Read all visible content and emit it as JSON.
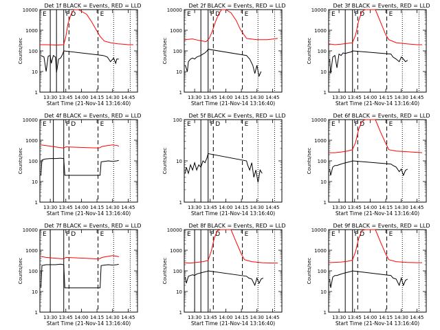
{
  "figure": {
    "ylabel": "Counts/sec",
    "xlabel": "Start Time (21-Nov-14 13:16:40)",
    "x_ticks": [
      "13:30",
      "13:45",
      "14:00",
      "14:15",
      "14:30",
      "14:45"
    ],
    "y_ticks": [
      "1",
      "10",
      "100",
      "1000",
      "10000"
    ],
    "marker_letters": [
      "E",
      "F",
      "D",
      "E"
    ],
    "colors": {
      "events": "#000000",
      "lld": "#ff0000",
      "axes": "#000000"
    }
  },
  "chart_data": [
    {
      "type": "line",
      "title": "Det 1f BLACK = Events, RED = LLD",
      "xlabel": "Start Time (21-Nov-14 13:16:40)",
      "ylabel": "Counts/sec",
      "y_scale": "log",
      "ylim": [
        1,
        10000
      ],
      "xlim": [
        "13:20",
        "14:54"
      ],
      "solid_lines": [
        "13:30",
        "13:36",
        "13:43"
      ],
      "dashed_lines": [
        "13:48",
        "14:16"
      ],
      "dotted_lines": [
        "14:31",
        "14:47"
      ],
      "series": [
        {
          "name": "LLD",
          "color": "#ff0000",
          "x": [
            "13:20",
            "13:26",
            "13:32",
            "13:36",
            "13:40",
            "13:43",
            "13:45",
            "13:47",
            "13:50",
            "13:53",
            "13:57",
            "14:05",
            "14:10",
            "14:15",
            "14:18",
            "14:22",
            "14:28",
            "14:35",
            "14:40",
            "14:45",
            "14:50"
          ],
          "y": [
            200,
            200,
            195,
            190,
            195,
            200,
            500,
            2000,
            6000,
            10000,
            10000,
            6000,
            2500,
            900,
            500,
            300,
            250,
            220,
            210,
            200,
            200
          ]
        },
        {
          "name": "Events",
          "color": "#000000",
          "x": [
            "13:21",
            "13:24",
            "13:26",
            "13:28",
            "13:30",
            "13:31",
            "13:33",
            "13:35",
            "13:36",
            "13:38",
            "13:40",
            "13:42",
            "13:43",
            "14:21",
            "14:23",
            "14:25",
            "14:28",
            "14:31",
            "14:33",
            "14:34",
            "14:36"
          ],
          "y": [
            60,
            50,
            10,
            55,
            60,
            25,
            60,
            50,
            9,
            40,
            45,
            70,
            100,
            60,
            55,
            50,
            30,
            45,
            25,
            40,
            40
          ]
        }
      ]
    },
    {
      "type": "line",
      "title": "Det 2f BLACK = Events, RED = LLD",
      "xlabel": "Start Time (21-Nov-14 13:16:40)",
      "ylabel": "Counts/sec",
      "y_scale": "log",
      "ylim": [
        1,
        10000
      ],
      "xlim": [
        "13:20",
        "14:54"
      ],
      "solid_lines": [
        "13:36",
        "13:43"
      ],
      "dashed_lines": [
        "13:48",
        "14:16"
      ],
      "dotted_lines": [
        "14:31",
        "14:47"
      ],
      "series": [
        {
          "name": "LLD",
          "color": "#ff0000",
          "x": [
            "13:20",
            "13:28",
            "13:34",
            "13:38",
            "13:41",
            "13:44",
            "13:47",
            "13:50",
            "13:53",
            "13:56",
            "14:00",
            "14:05",
            "14:10",
            "14:14",
            "14:20",
            "14:30",
            "14:40",
            "14:50"
          ],
          "y": [
            350,
            380,
            320,
            300,
            280,
            400,
            900,
            2500,
            6000,
            10000,
            10000,
            7000,
            3000,
            1100,
            400,
            350,
            350,
            400
          ]
        },
        {
          "name": "Events",
          "color": "#000000",
          "x": [
            "13:21",
            "13:23",
            "13:24",
            "13:26",
            "13:28",
            "13:30",
            "13:32",
            "13:34",
            "13:36",
            "13:38",
            "13:40",
            "13:42",
            "13:43",
            "14:20",
            "14:23",
            "14:26",
            "14:28",
            "14:30",
            "14:32",
            "14:34"
          ],
          "y": [
            20,
            10,
            30,
            40,
            45,
            40,
            50,
            55,
            60,
            70,
            80,
            100,
            120,
            60,
            40,
            20,
            8,
            20,
            6,
            10
          ]
        }
      ]
    },
    {
      "type": "line",
      "title": "Det 3f BLACK = Events, RED = LLD",
      "xlabel": "Start Time (21-Nov-14 13:16:40)",
      "ylabel": "Counts/sec",
      "y_scale": "log",
      "ylim": [
        1,
        10000
      ],
      "xlim": [
        "13:20",
        "14:54"
      ],
      "solid_lines": [
        "13:36",
        "13:43"
      ],
      "dashed_lines": [
        "13:48",
        "14:16"
      ],
      "dotted_lines": [
        "14:31",
        "14:47"
      ],
      "series": [
        {
          "name": "LLD",
          "color": "#ff0000",
          "x": [
            "13:20",
            "13:26",
            "13:32",
            "13:38",
            "13:43",
            "13:46",
            "13:49",
            "13:52",
            "13:55",
            "14:05",
            "14:10",
            "14:15",
            "14:18",
            "14:25",
            "14:35",
            "14:45",
            "14:50"
          ],
          "y": [
            220,
            200,
            210,
            230,
            250,
            600,
            3000,
            8000,
            10000,
            10000,
            2500,
            600,
            350,
            250,
            220,
            200,
            200
          ]
        },
        {
          "name": "Events",
          "color": "#000000",
          "x": [
            "13:21",
            "13:22",
            "13:24",
            "13:26",
            "13:28",
            "13:30",
            "13:32",
            "13:34",
            "13:36",
            "13:38",
            "13:40",
            "13:42",
            "13:43",
            "14:20",
            "14:22",
            "14:25",
            "14:28",
            "14:30",
            "14:32",
            "14:34",
            "14:36"
          ],
          "y": [
            40,
            8,
            50,
            60,
            15,
            70,
            60,
            80,
            75,
            80,
            85,
            90,
            100,
            70,
            50,
            40,
            30,
            50,
            40,
            30,
            35
          ]
        }
      ]
    },
    {
      "type": "line",
      "title": "Det 4f BLACK = Events, RED = LLD",
      "xlabel": "Start Time (21-Nov-14 13:16:40)",
      "ylabel": "Counts/sec",
      "y_scale": "log",
      "ylim": [
        1,
        10000
      ],
      "xlim": [
        "13:20",
        "14:54"
      ],
      "solid_lines": [
        "13:33",
        "13:43"
      ],
      "dashed_lines": [
        "13:48",
        "14:16"
      ],
      "dotted_lines": [
        "14:31",
        "14:47"
      ],
      "series": [
        {
          "name": "LLD",
          "color": "#ff0000",
          "x": [
            "13:21",
            "13:26",
            "13:32",
            "13:38",
            "13:43",
            "13:45",
            "14:17",
            "14:20",
            "14:25",
            "14:30",
            "14:35",
            "14:36"
          ],
          "y": [
            600,
            550,
            500,
            450,
            420,
            480,
            420,
            500,
            550,
            600,
            550,
            500
          ]
        },
        {
          "name": "Events",
          "color": "#000000",
          "x": [
            "13:21",
            "13:22",
            "13:24",
            "13:26",
            "13:30",
            "13:35",
            "13:40",
            "13:43",
            "13:44",
            "14:18",
            "14:19",
            "14:22",
            "14:26",
            "14:30",
            "14:34",
            "14:36"
          ],
          "y": [
            20,
            110,
            120,
            125,
            130,
            130,
            135,
            130,
            20,
            20,
            90,
            95,
            100,
            95,
            100,
            105
          ]
        }
      ]
    },
    {
      "type": "line",
      "title": "Det 5f BLACK = Events, RED = LLD",
      "xlabel": "Start Time (21-Nov-14 13:16:40)",
      "ylabel": "Counts/sec",
      "y_scale": "log",
      "ylim": [
        1,
        100
      ],
      "xlim": [
        "13:20",
        "14:54"
      ],
      "solid_lines": [
        "13:36",
        "13:43"
      ],
      "dashed_lines": [
        "13:48",
        "14:16"
      ],
      "dotted_lines": [
        "14:31",
        "14:47"
      ],
      "series": [
        {
          "name": "Events",
          "color": "#000000",
          "x": [
            "13:21",
            "13:22",
            "13:24",
            "13:26",
            "13:28",
            "13:30",
            "13:32",
            "13:34",
            "13:36",
            "13:38",
            "13:40",
            "13:42",
            "13:43",
            "14:20",
            "14:21",
            "14:23",
            "14:25",
            "14:27",
            "14:29",
            "14:31",
            "14:33",
            "14:35"
          ],
          "y": [
            5,
            7,
            5,
            8,
            6,
            9,
            6,
            8,
            7,
            10,
            9,
            12,
            15,
            10,
            8,
            6,
            9,
            4,
            6,
            3,
            6,
            5
          ]
        }
      ]
    },
    {
      "type": "line",
      "title": "Det 6f BLACK = Events, RED = LLD",
      "xlabel": "Start Time (21-Nov-14 13:16:40)",
      "ylabel": "Counts/sec",
      "y_scale": "log",
      "ylim": [
        1,
        10000
      ],
      "xlim": [
        "13:20",
        "14:54"
      ],
      "solid_lines": [
        "13:36",
        "13:43"
      ],
      "dashed_lines": [
        "13:48",
        "14:16"
      ],
      "dotted_lines": [
        "14:31",
        "14:47"
      ],
      "series": [
        {
          "name": "LLD",
          "color": "#ff0000",
          "x": [
            "13:20",
            "13:26",
            "13:32",
            "13:38",
            "13:43",
            "13:46",
            "13:49",
            "13:52",
            "13:55",
            "14:05",
            "14:10",
            "14:15",
            "14:18",
            "14:25",
            "14:35",
            "14:45",
            "14:50"
          ],
          "y": [
            250,
            250,
            270,
            300,
            350,
            800,
            3500,
            8000,
            10000,
            10000,
            2500,
            700,
            350,
            300,
            280,
            260,
            250
          ]
        },
        {
          "name": "Events",
          "color": "#000000",
          "x": [
            "13:21",
            "13:22",
            "13:24",
            "13:26",
            "13:28",
            "13:30",
            "13:32",
            "13:34",
            "13:36",
            "13:38",
            "13:40",
            "13:42",
            "13:43",
            "14:20",
            "14:22",
            "14:25",
            "14:28",
            "14:30",
            "14:32",
            "14:34",
            "14:36"
          ],
          "y": [
            40,
            20,
            50,
            60,
            60,
            65,
            70,
            75,
            80,
            85,
            90,
            95,
            100,
            70,
            60,
            50,
            30,
            40,
            20,
            35,
            40
          ]
        }
      ]
    },
    {
      "type": "line",
      "title": "Det 7f BLACK = Events, RED = LLD",
      "xlabel": "Start Time (21-Nov-14 13:16:40)",
      "ylabel": "Counts/sec",
      "y_scale": "log",
      "ylim": [
        1,
        10000
      ],
      "xlim": [
        "13:20",
        "14:54"
      ],
      "solid_lines": [
        "13:30",
        "13:43"
      ],
      "dashed_lines": [
        "13:48",
        "14:16"
      ],
      "dotted_lines": [
        "14:31",
        "14:47"
      ],
      "series": [
        {
          "name": "LLD",
          "color": "#ff0000",
          "x": [
            "13:21",
            "13:26",
            "13:32",
            "13:38",
            "13:43",
            "13:45",
            "14:17",
            "14:20",
            "14:25",
            "14:30",
            "14:35",
            "14:36"
          ],
          "y": [
            500,
            450,
            420,
            400,
            380,
            450,
            380,
            450,
            500,
            550,
            500,
            480
          ]
        },
        {
          "name": "Events",
          "color": "#000000",
          "x": [
            "13:21",
            "13:22",
            "13:24",
            "13:26",
            "13:30",
            "13:35",
            "13:40",
            "13:43",
            "13:44",
            "14:18",
            "14:19",
            "14:22",
            "14:26",
            "14:30",
            "14:34",
            "14:36"
          ],
          "y": [
            15,
            180,
            190,
            200,
            200,
            200,
            210,
            200,
            15,
            15,
            180,
            190,
            200,
            190,
            200,
            210
          ]
        }
      ]
    },
    {
      "type": "line",
      "title": "Det 8f BLACK = Events, RED = LLD",
      "xlabel": "Start Time (21-Nov-14 13:16:40)",
      "ylabel": "Counts/sec",
      "y_scale": "log",
      "ylim": [
        1,
        10000
      ],
      "xlim": [
        "13:20",
        "14:54"
      ],
      "solid_lines": [
        "13:30",
        "13:36",
        "13:43"
      ],
      "dashed_lines": [
        "13:48",
        "14:16"
      ],
      "dotted_lines": [
        "14:31",
        "14:47"
      ],
      "series": [
        {
          "name": "LLD",
          "color": "#ff0000",
          "x": [
            "13:20",
            "13:26",
            "13:32",
            "13:38",
            "13:43",
            "13:46",
            "13:49",
            "13:52",
            "13:55",
            "14:05",
            "14:10",
            "14:15",
            "14:18",
            "14:25",
            "14:35",
            "14:45",
            "14:50"
          ],
          "y": [
            250,
            240,
            260,
            280,
            320,
            900,
            4000,
            9000,
            10000,
            10000,
            2500,
            650,
            350,
            280,
            250,
            240,
            240
          ]
        },
        {
          "name": "Events",
          "color": "#000000",
          "x": [
            "13:21",
            "13:22",
            "13:24",
            "13:26",
            "13:28",
            "13:30",
            "13:32",
            "13:34",
            "13:36",
            "13:38",
            "13:40",
            "13:42",
            "13:43",
            "14:20",
            "14:22",
            "14:25",
            "14:28",
            "14:30",
            "14:32",
            "14:34",
            "14:36"
          ],
          "y": [
            50,
            25,
            55,
            60,
            65,
            60,
            70,
            75,
            80,
            85,
            90,
            95,
            100,
            55,
            45,
            40,
            20,
            45,
            25,
            40,
            45
          ]
        }
      ]
    },
    {
      "type": "line",
      "title": "Det 9f BLACK = Events, RED = LLD",
      "xlabel": "Start Time (21-Nov-14 13:16:40)",
      "ylabel": "Counts/sec",
      "y_scale": "log",
      "ylim": [
        1,
        10000
      ],
      "xlim": [
        "13:20",
        "14:54"
      ],
      "solid_lines": [
        "13:36",
        "13:43"
      ],
      "dashed_lines": [
        "13:48",
        "14:16"
      ],
      "dotted_lines": [
        "14:31",
        "14:47"
      ],
      "series": [
        {
          "name": "LLD",
          "color": "#ff0000",
          "x": [
            "13:20",
            "13:26",
            "13:32",
            "13:38",
            "13:43",
            "13:46",
            "13:49",
            "13:52",
            "13:55",
            "14:05",
            "14:10",
            "14:15",
            "14:18",
            "14:25",
            "14:35",
            "14:45",
            "14:50"
          ],
          "y": [
            250,
            260,
            270,
            290,
            330,
            900,
            3800,
            9000,
            10000,
            10000,
            2500,
            650,
            350,
            280,
            260,
            250,
            250
          ]
        },
        {
          "name": "Events",
          "color": "#000000",
          "x": [
            "13:21",
            "13:22",
            "13:24",
            "13:26",
            "13:28",
            "13:30",
            "13:32",
            "13:34",
            "13:36",
            "13:38",
            "13:40",
            "13:42",
            "13:43",
            "14:20",
            "14:22",
            "14:25",
            "14:28",
            "14:30",
            "14:32",
            "14:34",
            "14:36"
          ],
          "y": [
            40,
            15,
            50,
            60,
            60,
            65,
            70,
            75,
            80,
            85,
            90,
            95,
            100,
            60,
            45,
            40,
            20,
            45,
            20,
            35,
            40
          ]
        }
      ]
    }
  ]
}
